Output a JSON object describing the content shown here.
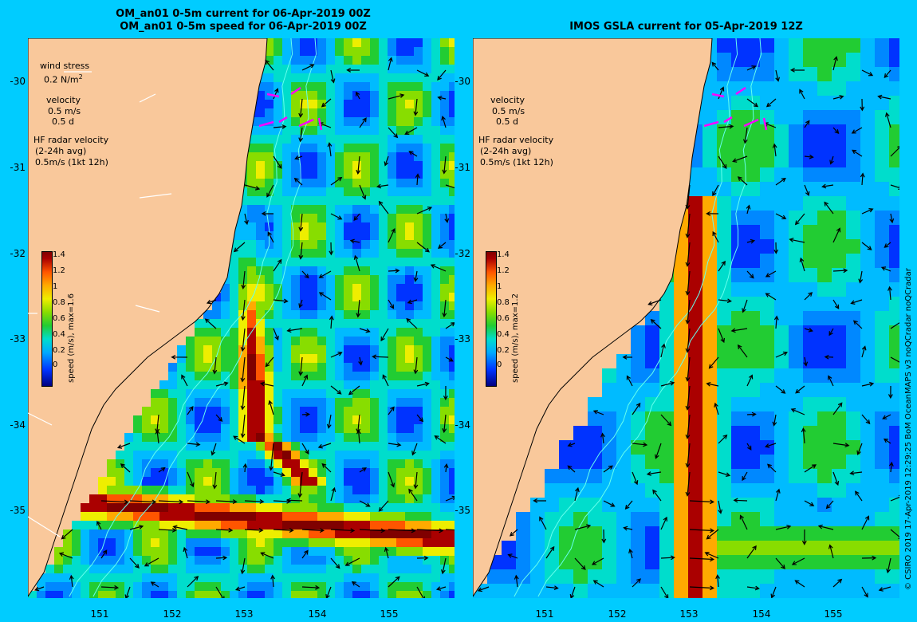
{
  "left_panel": {
    "title_line1": "OM_an01 0-5m current for 06-Apr-2019 00Z",
    "title_line2": "OM_an01 0-5m speed for 06-Apr-2019 00Z",
    "legend": {
      "wind_stress": "wind stress",
      "wind_stress_value": "0.2 N/m",
      "wind_stress_exp": "2",
      "velocity": "velocity",
      "velocity_ms": "0.5 m/s",
      "velocity_d": "0.5 d",
      "hf_radar": "HF radar velocity",
      "hf_avg": "(2-24h avg)",
      "hf_scale": "0.5m/s (1kt 12h)"
    },
    "colorbar_title": "speed (m/s), max=1.6"
  },
  "right_panel": {
    "title": "IMOS GSLA current for 05-Apr-2019 12Z",
    "legend": {
      "velocity": "velocity",
      "velocity_ms": "0.5 m/s",
      "velocity_d": "0.5 d",
      "hf_radar": "HF radar velocity",
      "hf_avg": "(2-24h avg)",
      "hf_scale": "0.5m/s (1kt 12h)"
    },
    "colorbar_title": "speed (m/s), max=1.2"
  },
  "colorbar_ticks": [
    "1.4",
    "1.2",
    "1",
    "0.8",
    "0.6",
    "0.4",
    "0.2",
    "0"
  ],
  "lat_ticks": [
    "-30",
    "-31",
    "-32",
    "-33",
    "-34",
    "-35"
  ],
  "lon_ticks": [
    "151",
    "152",
    "153",
    "154",
    "155"
  ],
  "credit": "© CSIRO 2019  17-Apr-2019 12:29:25 BoM OceanMAPS v3 noQCradar noQCradar",
  "colors": {
    "background": "#00ccff",
    "land": "#f9c89b",
    "hf_radar_arrow": "#ff00ff",
    "isobath": "#66ffee"
  }
}
